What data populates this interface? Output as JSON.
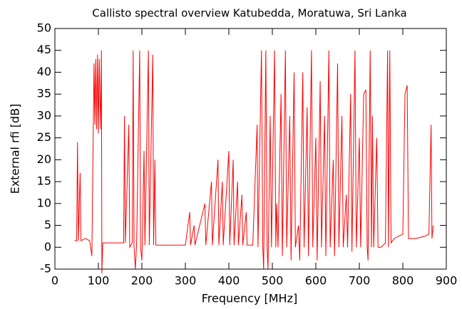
{
  "chart_data": {
    "type": "line",
    "title": "Callisto spectral overview Katubedda, Moratuwa, Sri Lanka",
    "x_label": "Frequency [MHz]",
    "y_label": "External rfi [dB]",
    "color": "#ff0000",
    "xlim": [
      0,
      900
    ],
    "xticks": [
      0,
      100,
      200,
      300,
      400,
      500,
      600,
      700,
      800,
      900
    ],
    "ylim": [
      -5,
      50
    ],
    "yticks": [
      -5,
      0,
      5,
      10,
      15,
      20,
      25,
      30,
      35,
      40,
      45,
      50
    ],
    "x": [
      45,
      50,
      52,
      54,
      58,
      60,
      70,
      80,
      85,
      88,
      90,
      92,
      94,
      96,
      98,
      100,
      102,
      105,
      107,
      108,
      110,
      130,
      150,
      158,
      160,
      162,
      170,
      172,
      178,
      180,
      182,
      185,
      188,
      195,
      197,
      200,
      205,
      207,
      215,
      217,
      225,
      227,
      230,
      232,
      250,
      280,
      300,
      310,
      312,
      320,
      322,
      345,
      347,
      360,
      362,
      375,
      377,
      385,
      387,
      400,
      402,
      410,
      412,
      420,
      422,
      430,
      432,
      440,
      442,
      455,
      465,
      467,
      475,
      478,
      480,
      485,
      488,
      490,
      495,
      498,
      505,
      508,
      510,
      513,
      520,
      523,
      530,
      533,
      540,
      543,
      550,
      553,
      560,
      563,
      570,
      573,
      580,
      583,
      590,
      593,
      600,
      603,
      610,
      613,
      620,
      623,
      630,
      633,
      640,
      643,
      650,
      653,
      660,
      663,
      670,
      673,
      680,
      683,
      690,
      693,
      700,
      703,
      710,
      715,
      718,
      720,
      725,
      728,
      730,
      733,
      740,
      743,
      750,
      760,
      765,
      767,
      770,
      773,
      780,
      800,
      805,
      810,
      813,
      830,
      850,
      860,
      865,
      867,
      870
    ],
    "values": [
      1.5,
      1.5,
      24,
      1.5,
      17,
      1.5,
      2,
      1.5,
      -2,
      25,
      42,
      28,
      43,
      27,
      44,
      26,
      43,
      27,
      45,
      -6,
      1,
      1,
      1,
      1,
      30,
      1,
      28,
      0,
      1,
      45,
      0,
      -5,
      1,
      45,
      0,
      -3,
      22,
      0.5,
      45,
      0.5,
      44,
      0.5,
      20,
      0.5,
      0.5,
      0.5,
      0.5,
      8,
      0.5,
      5,
      0.5,
      10,
      0.5,
      15,
      0.5,
      20,
      0.5,
      15,
      0.5,
      22,
      0.5,
      20,
      0.5,
      15,
      0.5,
      12,
      0.5,
      8,
      0.5,
      0.5,
      28,
      0,
      45,
      0,
      -5,
      45,
      0,
      -5,
      30,
      0,
      45,
      0,
      10,
      0,
      35,
      -2,
      45,
      0,
      30,
      -3,
      40,
      0,
      5,
      -3,
      40,
      0,
      32,
      -2,
      45,
      0,
      25,
      -3,
      38,
      0,
      30,
      -2,
      45,
      0,
      20,
      -2,
      42,
      0,
      30,
      0,
      12,
      0,
      35,
      -1,
      45,
      0,
      25,
      0,
      35,
      36,
      0,
      -3,
      45,
      0,
      30,
      0,
      25,
      0,
      0,
      1,
      45,
      0,
      45,
      1,
      2,
      3,
      35,
      37,
      2,
      2,
      2.5,
      3,
      28,
      2,
      5
    ]
  }
}
